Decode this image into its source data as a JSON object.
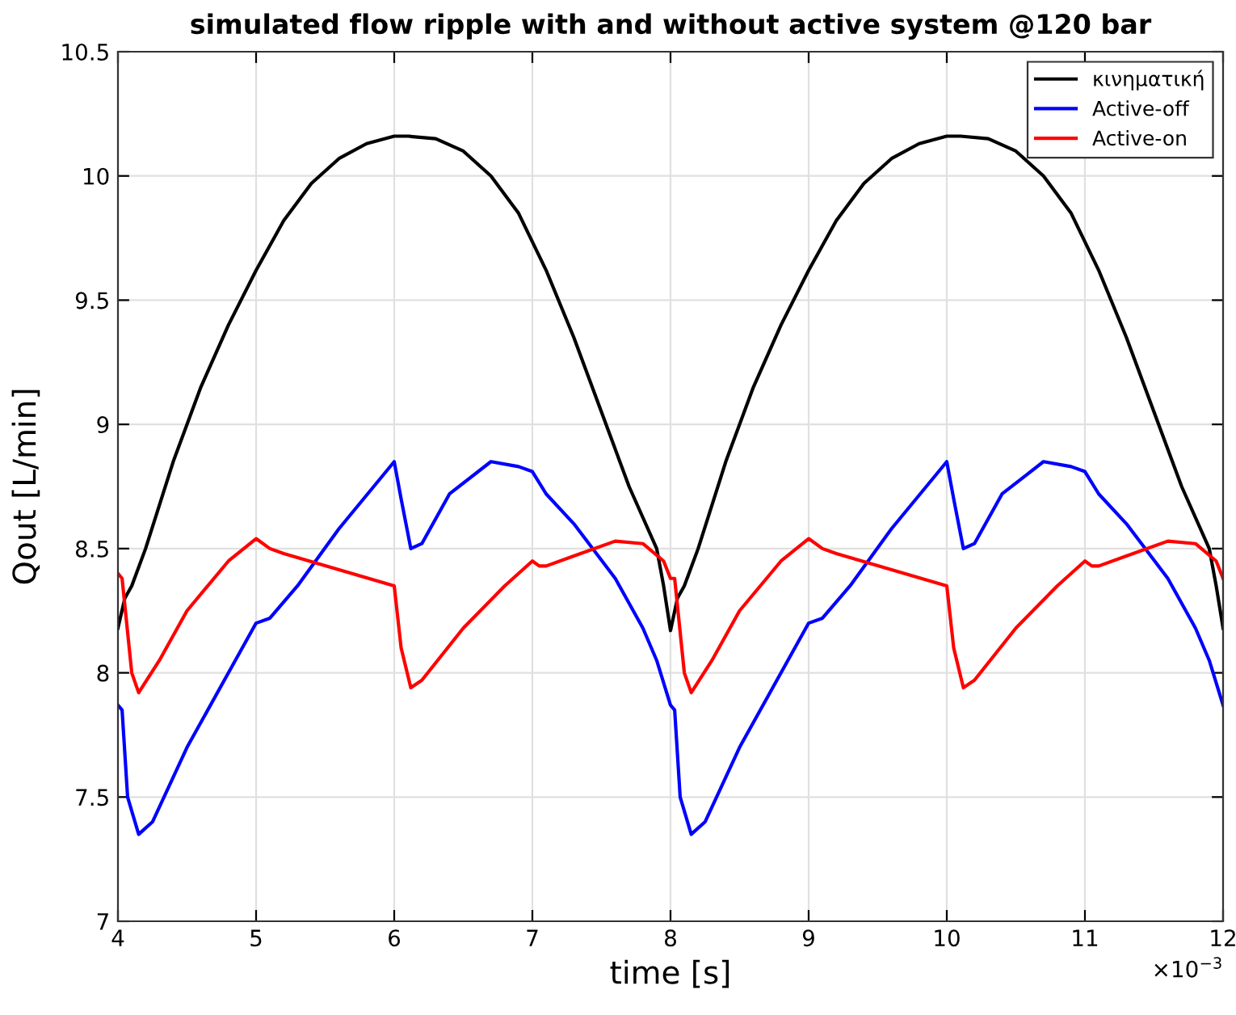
{
  "chart_data": {
    "type": "line",
    "title": "simulated flow ripple with and without active system @120 bar",
    "xlabel": "time [s]",
    "ylabel": "Qout [L/min]",
    "xlim": [
      4,
      12
    ],
    "xticks": [
      4,
      5,
      6,
      7,
      8,
      9,
      10,
      11,
      12
    ],
    "ylim": [
      7,
      10.5
    ],
    "yticks": [
      7,
      7.5,
      8,
      8.5,
      9,
      9.5,
      10,
      10.5
    ],
    "grid": true,
    "legend": "top right",
    "line_style": "solid",
    "marker": "none",
    "annotations": [
      "×10$^{−3}$"
    ],
    "series": [
      {
        "name": "κινηματική",
        "color": "#000000",
        "x": [
          4,
          4.05,
          4.1,
          4.2,
          4.4,
          4.6,
          4.8,
          5,
          5.2,
          5.4,
          5.6,
          5.8,
          6,
          6.1,
          6.3,
          6.5,
          6.7,
          6.9,
          7.1,
          7.3,
          7.5,
          7.7,
          7.9,
          7.95,
          8,
          8.05,
          8.1,
          8.2,
          8.4,
          8.6,
          8.8,
          9,
          9.2,
          9.4,
          9.6,
          9.8,
          10,
          10.1,
          10.3,
          10.5,
          10.7,
          10.9,
          11.1,
          11.3,
          11.5,
          11.7,
          11.9,
          11.95,
          12
        ],
        "values": [
          8.18,
          8.3,
          8.35,
          8.5,
          8.85,
          9.15,
          9.4,
          9.62,
          9.82,
          9.97,
          10.07,
          10.13,
          10.16,
          10.16,
          10.15,
          10.1,
          10.0,
          9.85,
          9.62,
          9.35,
          9.05,
          8.75,
          8.5,
          8.35,
          8.17,
          8.3,
          8.35,
          8.5,
          8.85,
          9.15,
          9.4,
          9.62,
          9.82,
          9.97,
          10.07,
          10.13,
          10.16,
          10.16,
          10.15,
          10.1,
          10.0,
          9.85,
          9.62,
          9.35,
          9.05,
          8.75,
          8.5,
          8.35,
          8.18
        ]
      },
      {
        "name": "Active-off",
        "color": "#0000ff",
        "x": [
          4,
          4.03,
          4.07,
          4.15,
          4.25,
          4.5,
          4.8,
          5,
          5.1,
          5.3,
          5.6,
          6,
          6.05,
          6.12,
          6.2,
          6.4,
          6.7,
          6.9,
          7,
          7.1,
          7.3,
          7.6,
          7.8,
          7.9,
          8,
          8.03,
          8.07,
          8.15,
          8.25,
          8.5,
          8.8,
          9,
          9.1,
          9.3,
          9.6,
          10,
          10.05,
          10.12,
          10.2,
          10.4,
          10.7,
          10.9,
          11,
          11.1,
          11.3,
          11.6,
          11.8,
          11.9,
          12
        ],
        "values": [
          7.87,
          7.85,
          7.5,
          7.35,
          7.4,
          7.7,
          8.0,
          8.2,
          8.22,
          8.35,
          8.58,
          8.85,
          8.7,
          8.5,
          8.52,
          8.72,
          8.85,
          8.83,
          8.81,
          8.72,
          8.6,
          8.38,
          8.18,
          8.05,
          7.87,
          7.85,
          7.5,
          7.35,
          7.4,
          7.7,
          8.0,
          8.2,
          8.22,
          8.35,
          8.58,
          8.85,
          8.7,
          8.5,
          8.52,
          8.72,
          8.85,
          8.83,
          8.81,
          8.72,
          8.6,
          8.38,
          8.18,
          8.05,
          7.87
        ]
      },
      {
        "name": "Active-on",
        "color": "#ff0000",
        "x": [
          4,
          4.03,
          4.1,
          4.15,
          4.3,
          4.5,
          4.8,
          5,
          5.1,
          5.2,
          6,
          6.05,
          6.12,
          6.2,
          6.5,
          6.8,
          7,
          7.05,
          7.1,
          7.3,
          7.6,
          7.8,
          7.95,
          8,
          8.03,
          8.1,
          8.15,
          8.3,
          8.5,
          8.8,
          9,
          9.1,
          9.2,
          10,
          10.05,
          10.12,
          10.2,
          10.5,
          10.8,
          11,
          11.05,
          11.1,
          11.3,
          11.6,
          11.8,
          11.95,
          12
        ],
        "values": [
          8.4,
          8.38,
          8.0,
          7.92,
          8.05,
          8.25,
          8.45,
          8.54,
          8.5,
          8.48,
          8.35,
          8.1,
          7.94,
          7.97,
          8.18,
          8.35,
          8.45,
          8.43,
          8.43,
          8.47,
          8.53,
          8.52,
          8.45,
          8.38,
          8.38,
          8.0,
          7.92,
          8.05,
          8.25,
          8.45,
          8.54,
          8.5,
          8.48,
          8.35,
          8.1,
          7.94,
          7.97,
          8.18,
          8.35,
          8.45,
          8.43,
          8.43,
          8.47,
          8.53,
          8.52,
          8.45,
          8.38
        ]
      }
    ]
  }
}
